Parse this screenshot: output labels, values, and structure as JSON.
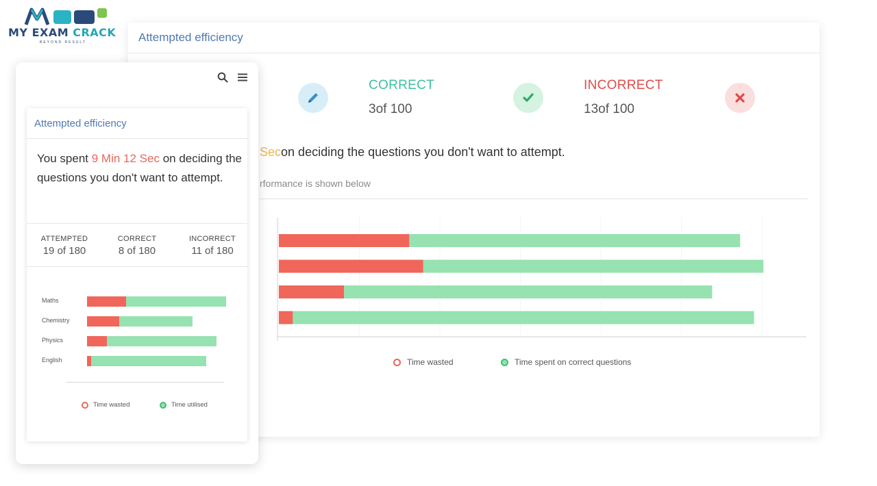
{
  "logo": {
    "brand": "MY EXAM CRACK",
    "brand_part1": "MY EXAM ",
    "brand_part2": "CRACK",
    "tagline": "BEYOND RESULT"
  },
  "desktop": {
    "title": "Attempted efficiency",
    "stats": [
      {
        "label": "CORRECT",
        "value": "3of  100",
        "color": "#3fbfa0",
        "icon": "check-icon"
      },
      {
        "label": "INCORRECT",
        "value": "13of  100",
        "color": "#e04a4a",
        "icon": "x-icon"
      }
    ],
    "attempted_icon": "pencil-icon",
    "note_time": "Sec",
    "note_rest": "on deciding the questions you don't want to attempt.",
    "sub_text": "rformance is shown below",
    "legend": {
      "wasted": "Time wasted",
      "correct": "Time spent on correct questions"
    }
  },
  "mobile": {
    "title": "Attempted efficiency",
    "note_before": "You spent ",
    "note_time": "9 Min 12 Sec",
    "note_after": " on deciding the questions you don't want to attempt.",
    "stats": [
      {
        "label": "ATTEMPTED",
        "value": "19 of 180"
      },
      {
        "label": "CORRECT",
        "value": "8 of 180"
      },
      {
        "label": "INCORRECT",
        "value": "11 of 180"
      }
    ],
    "legend": {
      "wasted": "Time wasted",
      "utilised": "Time utilised"
    }
  },
  "chart_data": [
    {
      "type": "bar",
      "orientation": "horizontal",
      "stacked": true,
      "categories": [
        "",
        "",
        "",
        ""
      ],
      "series": [
        {
          "name": "Time wasted",
          "color": "#f0665a",
          "values": [
            0.28,
            0.31,
            0.14,
            0.03
          ]
        },
        {
          "name": "Time spent on correct questions",
          "color": "#96e2b0",
          "values": [
            0.71,
            0.73,
            0.79,
            0.99
          ]
        }
      ],
      "grid": true,
      "legend_position": "bottom"
    },
    {
      "type": "bar",
      "orientation": "horizontal",
      "stacked": true,
      "categories": [
        "Maths",
        "Chemistry",
        "Physics",
        "English"
      ],
      "series": [
        {
          "name": "Time wasted",
          "color": "#f0665a",
          "values": [
            0.28,
            0.23,
            0.14,
            0.03
          ]
        },
        {
          "name": "Time utilised",
          "color": "#96e2b0",
          "values": [
            0.71,
            0.52,
            0.78,
            0.82
          ]
        }
      ],
      "grid": false,
      "legend_position": "bottom"
    }
  ]
}
